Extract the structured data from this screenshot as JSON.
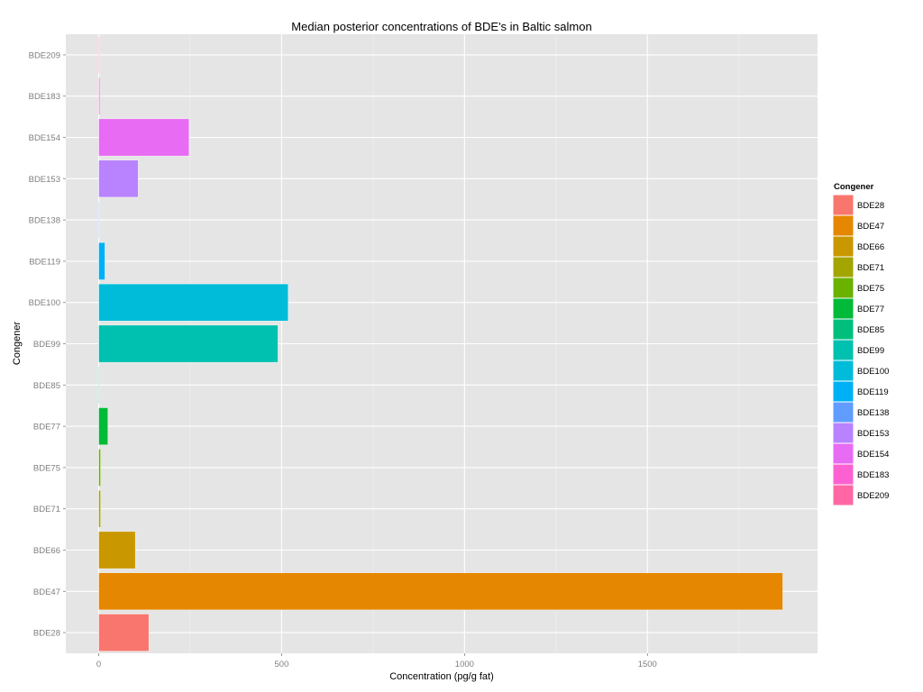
{
  "chart_data": {
    "type": "bar",
    "orientation": "horizontal",
    "title": "Median posterior concentrations of BDE's in Baltic salmon",
    "xlabel": "Concentration (pg/g fat)",
    "ylabel": "Congener",
    "xlim": [
      -90,
      1965
    ],
    "x_ticks": [
      0,
      500,
      1000,
      1500
    ],
    "grid": true,
    "legend": {
      "title": "Congener",
      "position": "right"
    },
    "categories": [
      "BDE28",
      "BDE47",
      "BDE66",
      "BDE71",
      "BDE75",
      "BDE77",
      "BDE85",
      "BDE99",
      "BDE100",
      "BDE119",
      "BDE138",
      "BDE153",
      "BDE154",
      "BDE183",
      "BDE209"
    ],
    "values": [
      137,
      1870,
      100,
      5,
      5,
      25,
      1,
      490,
      518,
      17,
      1,
      108,
      247,
      3,
      2
    ],
    "colors": [
      "#F8766D",
      "#E58700",
      "#C99800",
      "#A3A500",
      "#6BB100",
      "#00BA38",
      "#00BF7D",
      "#00C0AF",
      "#00BCD8",
      "#00B0F6",
      "#619CFF",
      "#B983FF",
      "#E76BF3",
      "#FD61D1",
      "#FF67A4"
    ]
  }
}
